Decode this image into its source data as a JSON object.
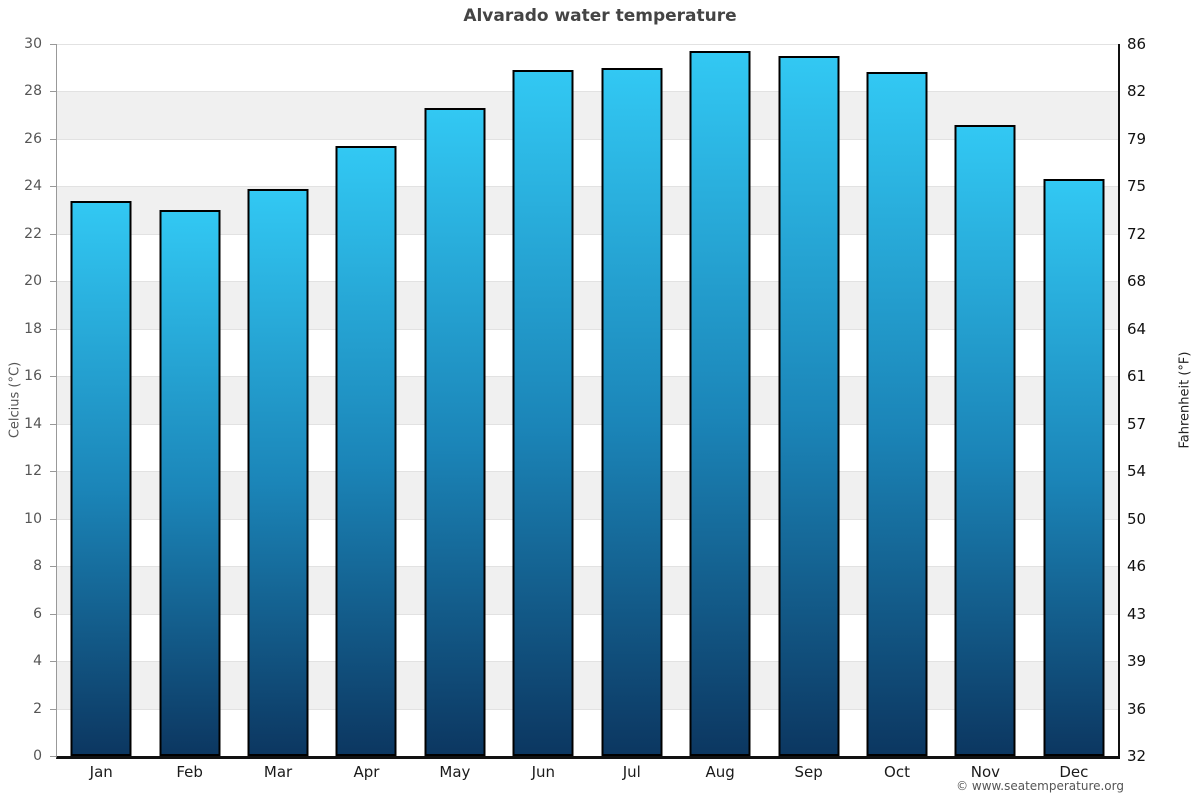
{
  "title": "Alvarado water temperature",
  "footer": {
    "copyright": "© www.seatemperature.org"
  },
  "chart_data": {
    "type": "bar",
    "title": "Alvarado water temperature",
    "categories": [
      "Jan",
      "Feb",
      "Mar",
      "Apr",
      "May",
      "Jun",
      "Jul",
      "Aug",
      "Sep",
      "Oct",
      "Nov",
      "Dec"
    ],
    "values": [
      23.4,
      23.0,
      23.9,
      25.7,
      27.3,
      28.9,
      29.0,
      29.7,
      29.5,
      28.8,
      26.6,
      24.3
    ],
    "unit": "°C",
    "ylabel_left": "Celcius (°C)",
    "ylabel_right": "Fahrenheit (°F)",
    "ylim": [
      0,
      30
    ],
    "ytick_step": 2,
    "yticks_celsius": [
      "30",
      "28",
      "26",
      "24",
      "22",
      "20",
      "18",
      "16",
      "14",
      "12",
      "10",
      "8",
      "6",
      "4",
      "2",
      "0"
    ],
    "yticks_fahrenheit": [
      "86",
      "82",
      "79",
      "75",
      "72",
      "68",
      "64",
      "61",
      "57",
      "54",
      "50",
      "46",
      "43",
      "39",
      "36",
      "32"
    ],
    "legend": "none",
    "grid": "horizontal gridlines every 2°C with alternating shaded bands",
    "colors": {
      "bar_gradient_top": "#32c8f3",
      "bar_gradient_mid": "#1b85b8",
      "bar_gradient_bottom": "#0c3761",
      "bar_border": "#000000",
      "band_light": "#ffffff",
      "band_shade": "#f0f0f0",
      "gridline": "#e2e2e2",
      "axis_left": "#999999",
      "axis_dark": "#111111",
      "title": "#444444",
      "tick_left": "#555555",
      "tick_right": "#111111",
      "month_label": "#1a1a1a",
      "copyright": "#555555"
    }
  }
}
